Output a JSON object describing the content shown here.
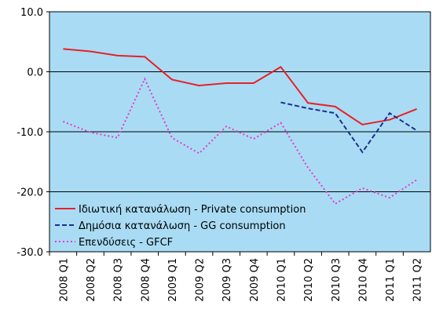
{
  "chart_data": {
    "type": "line",
    "categories": [
      "2008 Q1",
      "2008 Q2",
      "2008 Q3",
      "2008 Q4",
      "2009 Q1",
      "2009 Q2",
      "2009 Q3",
      "2009 Q4",
      "2010 Q1",
      "2010 Q2",
      "2010 Q3",
      "2010 Q4",
      "2011 Q1",
      "2011 Q2"
    ],
    "series": [
      {
        "name": "Ιδιωτική κατανάλωση - Private consumption",
        "color": "#e8202a",
        "dash": "solid",
        "values": [
          3.8,
          3.4,
          2.7,
          2.5,
          -1.3,
          -2.3,
          -1.9,
          -1.9,
          0.8,
          -5.2,
          -5.8,
          -8.8,
          -8.0,
          -6.2
        ]
      },
      {
        "name": "Δημόσια κατανάλωση - GG consumption",
        "color": "#1c2f8c",
        "dash": "dashed",
        "values": [
          null,
          null,
          null,
          null,
          null,
          null,
          null,
          null,
          -5.1,
          -6.1,
          -6.9,
          -13.4,
          -6.9,
          -9.8
        ]
      },
      {
        "name": "Επενδύσεις - GFCF",
        "color": "#e838c8",
        "dash": "dotted",
        "values": [
          -8.3,
          -10.1,
          -11.0,
          -1.2,
          -11.0,
          -13.6,
          -9.1,
          -11.2,
          -8.5,
          -16.0,
          -22.0,
          -19.4,
          -21.0,
          -18.0
        ]
      }
    ],
    "ylim": [
      -30,
      10
    ],
    "yticks": [
      {
        "value": -30,
        "label": "-30.0"
      },
      {
        "value": -20,
        "label": "-20.0"
      },
      {
        "value": -10,
        "label": "-10.0"
      },
      {
        "value": 0,
        "label": "0.0"
      },
      {
        "value": 10,
        "label": "10.0"
      }
    ],
    "grid": true,
    "legend": "lower left",
    "background": "#a9dcf4"
  }
}
